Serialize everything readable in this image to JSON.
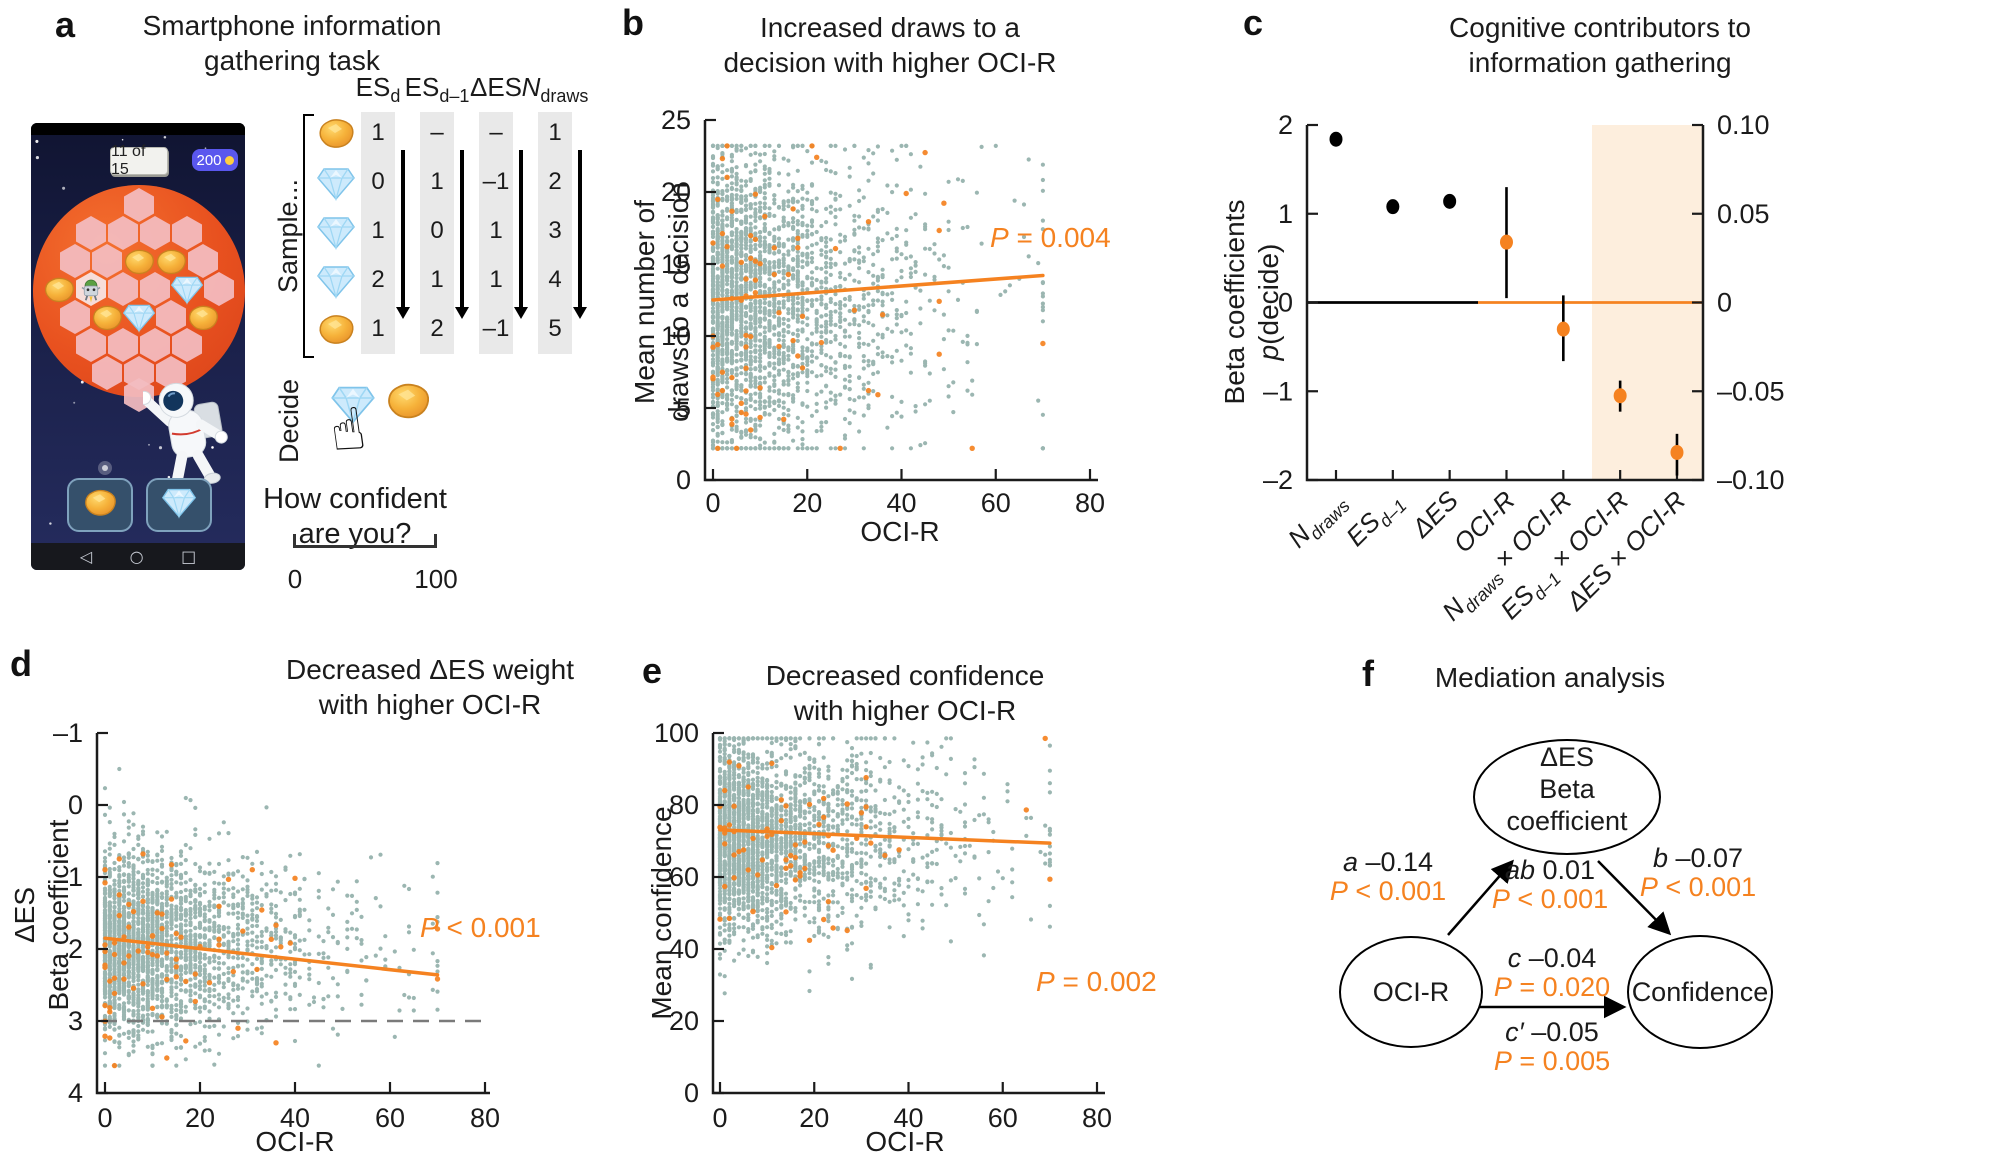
{
  "colors": {
    "accent_orange": "#f58220",
    "dot_gray_green": "#93b0ab",
    "highlight_shade": "#fdeedd",
    "axis_black": "#1b1b1b"
  },
  "panels": {
    "a": {
      "label": "a",
      "title": "Smartphone information\ngathering task",
      "phone": {
        "trial_counter": "11 of 15",
        "score": "200",
        "nav_icons": [
          "◁",
          "○",
          "□"
        ],
        "grid_rows": [
          [
            "hex"
          ],
          [
            "hex",
            "hex",
            "hex",
            "hex"
          ],
          [
            "hex",
            "hex",
            "gold",
            "gold",
            "hex"
          ],
          [
            "gold",
            "robot",
            "hex",
            "hex",
            "diamond",
            "hex"
          ],
          [
            "hex",
            "gold",
            "diamond",
            "hex",
            "gold"
          ],
          [
            "hex",
            "hex",
            "hex",
            "hex"
          ],
          [
            "hex",
            "hex",
            "hex"
          ],
          [
            "hex"
          ]
        ],
        "choice_buttons": [
          "gold",
          "diamond"
        ]
      },
      "sample_label": "Sample...",
      "decide_label": "Decide",
      "decide_icons": [
        "diamond",
        "gold"
      ],
      "decide_hand": "☝",
      "confidence_question": "How confident\nare you?",
      "scale_min": "0",
      "scale_max": "100",
      "table": {
        "headers": [
          {
            "base": "ES",
            "sub": "d",
            "italic": false
          },
          {
            "base": "ES",
            "sub": "d–1",
            "italic": false
          },
          {
            "base": "ΔES",
            "sub": "",
            "italic": false
          },
          {
            "base": "N",
            "sub": "draws",
            "italic": true
          }
        ],
        "rows": [
          {
            "icon": "gold",
            "values": [
              "1",
              "–",
              "–",
              "1"
            ]
          },
          {
            "icon": "diamond",
            "values": [
              "0",
              "1",
              "–1",
              "2"
            ]
          },
          {
            "icon": "diamond",
            "values": [
              "1",
              "0",
              "1",
              "3"
            ]
          },
          {
            "icon": "diamond",
            "values": [
              "2",
              "1",
              "1",
              "4"
            ]
          },
          {
            "icon": "gold",
            "values": [
              "1",
              "2",
              "–1",
              "5"
            ]
          }
        ]
      }
    },
    "b": {
      "label": "b",
      "title": "Increased draws to a\ndecision with higher OCI-R",
      "ylabel": "Mean number of\ndraws to a decision",
      "xlabel": "OCI-R",
      "p": {
        "sym": "P",
        "rest": " = 0.004"
      }
    },
    "c": {
      "label": "c",
      "title": "Cognitive contributors to\ninformation gathering",
      "ylabel_line1": "Beta coefficients",
      "ylabel_line2_sym": "p",
      "ylabel_line2_rest": "(decide)"
    },
    "d": {
      "label": "d",
      "title": "Decreased ΔES weight\nwith higher OCI-R",
      "ylabel": "ΔES\nBeta coefficient",
      "xlabel": "OCI-R",
      "p": {
        "sym": "P",
        "rest": " < 0.001"
      }
    },
    "e": {
      "label": "e",
      "title": "Decreased confidence\nwith higher OCI-R",
      "ylabel": "Mean confidence",
      "xlabel": "OCI-R",
      "p": {
        "sym": "P",
        "rest": " = 0.002"
      }
    },
    "f": {
      "label": "f",
      "title": "Mediation analysis",
      "nodes": {
        "mediator_line1": "ΔES",
        "mediator_line2": "Beta coefficient",
        "predictor": "OCI-R",
        "outcome": "Confidence"
      },
      "paths": {
        "a": {
          "coef": {
            "sym": "a",
            "rest": " –0.14"
          },
          "p": {
            "sym": "P",
            "rest": " < 0.001"
          }
        },
        "ab": {
          "coef": {
            "sym": "ab",
            "rest": " 0.01"
          },
          "p": {
            "sym": "P",
            "rest": " < 0.001"
          }
        },
        "b": {
          "coef": {
            "sym": "b",
            "rest": " –0.07"
          },
          "p": {
            "sym": "P",
            "rest": " < 0.001"
          }
        },
        "c": {
          "coef": {
            "sym": "c",
            "rest": " –0.04"
          },
          "p": {
            "sym": "P",
            "rest": " = 0.020"
          }
        },
        "c_prime": {
          "coef": {
            "sym": "c′",
            "rest": " –0.05"
          },
          "p": {
            "sym": "P",
            "rest": " = 0.005"
          }
        }
      }
    }
  },
  "chart_data": [
    {
      "panel": "b",
      "type": "scatter",
      "title": "Increased draws to a decision with higher OCI-R",
      "xlabel": "OCI-R",
      "ylabel": "Mean number of draws to a decision",
      "xlim": [
        0,
        80
      ],
      "ylim": [
        0,
        25
      ],
      "xticks": [
        "0",
        "20",
        "40",
        "60",
        "80"
      ],
      "yticks": [
        "0",
        "5",
        "10",
        "15",
        "20",
        "25"
      ],
      "p_label": "P = 0.004",
      "regression_line": {
        "x": [
          0,
          70
        ],
        "y": [
          12.5,
          14.2
        ]
      },
      "points": {
        "gray": {
          "n": 2600,
          "x_exp_mean": 14,
          "x_max": 70,
          "y_mean": 12.5,
          "y_sd": 5.3,
          "y_min": 2.2,
          "y_max": 23.2,
          "seed": 11
        },
        "orange": {
          "n": 78,
          "x_exp_mean": 16,
          "x_max": 70,
          "y_mean": 12.5,
          "y_sd": 5.3,
          "y_min": 2.2,
          "y_max": 23.2,
          "seed": 12
        }
      }
    },
    {
      "panel": "c",
      "type": "scatter",
      "subtype": "point-estimates-with-95CI",
      "title": "Cognitive contributors to information gathering",
      "ylabel_left": "Beta coefficients p(decide)",
      "ylim_left": [
        -2,
        2
      ],
      "yticks_left": [
        "2",
        "1",
        "0",
        "–1",
        "–2"
      ],
      "yticks_right": [
        "0.10",
        "0.05",
        "0",
        "–0.05",
        "–0.10"
      ],
      "categories": [
        "N_draws",
        "ES_d–1",
        "ΔES",
        "OCI-R",
        "N_draws × OCI-R",
        "ES_d–1 × OCI-R",
        "ΔES × OCI-R"
      ],
      "categories_rich": [
        [
          {
            "t": "N"
          },
          {
            "t": "draws",
            "sub": true
          }
        ],
        [
          {
            "t": "ES"
          },
          {
            "t": "d–1",
            "sub": true
          }
        ],
        [
          {
            "t": "ΔES"
          }
        ],
        [
          {
            "t": "OCI-R"
          }
        ],
        [
          {
            "t": "N"
          },
          {
            "t": "draws",
            "sub": true
          },
          {
            "t": " × OCI-R"
          }
        ],
        [
          {
            "t": "ES"
          },
          {
            "t": "d–1",
            "sub": true
          },
          {
            "t": " × OCI-R"
          }
        ],
        [
          {
            "t": "ΔES × OCI-R"
          }
        ]
      ],
      "values": [
        1.84,
        1.08,
        1.14,
        0.68,
        -0.3,
        -1.05,
        -1.69
      ],
      "ci_low": [
        1.77,
        1.01,
        1.07,
        0.05,
        -0.66,
        -1.23,
        -1.95
      ],
      "ci_high": [
        1.91,
        1.15,
        1.21,
        1.3,
        0.08,
        -0.88,
        -1.48
      ],
      "point_colors": [
        "#000000",
        "#000000",
        "#000000",
        "#f58220",
        "#f58220",
        "#f58220",
        "#f58220"
      ],
      "highlight_region_categories": [
        "ES_d–1 × OCI-R",
        "ΔES × OCI-R"
      ],
      "highlight_color": "#fdeedd",
      "zero_line": {
        "black_span_categories": [
          "N_draws",
          "ES_d–1",
          "ΔES"
        ],
        "orange_span_categories": [
          "OCI-R",
          "N_draws × OCI-R",
          "ES_d–1 × OCI-R",
          "ΔES × OCI-R"
        ]
      }
    },
    {
      "panel": "d",
      "type": "scatter",
      "title": "Decreased ΔES weight with higher OCI-R",
      "xlabel": "OCI-R",
      "ylabel": "ΔES Beta coefficient",
      "xlim": [
        0,
        80
      ],
      "ylim": [
        -1,
        4
      ],
      "xticks": [
        "0",
        "20",
        "40",
        "60",
        "80"
      ],
      "yticks": [
        "4",
        "3",
        "2",
        "1",
        "0",
        "–1"
      ],
      "p_label": "P < 0.001",
      "zero_line_dashed": true,
      "regression_line": {
        "x": [
          0,
          70
        ],
        "y": [
          1.15,
          0.64
        ]
      },
      "points": {
        "gray": {
          "n": 2600,
          "x_exp_mean": 14,
          "x_max": 70,
          "y_mean": 1.05,
          "y_sd": 0.62,
          "y_min": -0.62,
          "y_max": 3.5,
          "seed": 21
        },
        "orange": {
          "n": 78,
          "x_exp_mean": 16,
          "x_max": 70,
          "y_mean": 1.05,
          "y_sd": 0.62,
          "y_min": -0.62,
          "y_max": 3.5,
          "seed": 22
        }
      }
    },
    {
      "panel": "e",
      "type": "scatter",
      "title": "Decreased confidence with higher OCI-R",
      "xlabel": "OCI-R",
      "ylabel": "Mean confidence",
      "xlim": [
        0,
        80
      ],
      "ylim": [
        0,
        100
      ],
      "xticks": [
        "0",
        "20",
        "40",
        "60",
        "80"
      ],
      "yticks": [
        "0",
        "20",
        "40",
        "60",
        "80",
        "100"
      ],
      "p_label": "P = 0.002",
      "regression_line": {
        "x": [
          0,
          70
        ],
        "y": [
          73.1,
          69.4
        ]
      },
      "points": {
        "gray": {
          "n": 2600,
          "x_exp_mean": 14,
          "x_max": 70,
          "y_mean": 71,
          "y_sd": 13.5,
          "y_min": 18,
          "y_max": 98.5,
          "seed": 31
        },
        "orange": {
          "n": 72,
          "x_exp_mean": 16,
          "x_max": 70,
          "y_mean": 71,
          "y_sd": 13.5,
          "y_min": 18,
          "y_max": 98.5,
          "seed": 32
        }
      }
    }
  ]
}
